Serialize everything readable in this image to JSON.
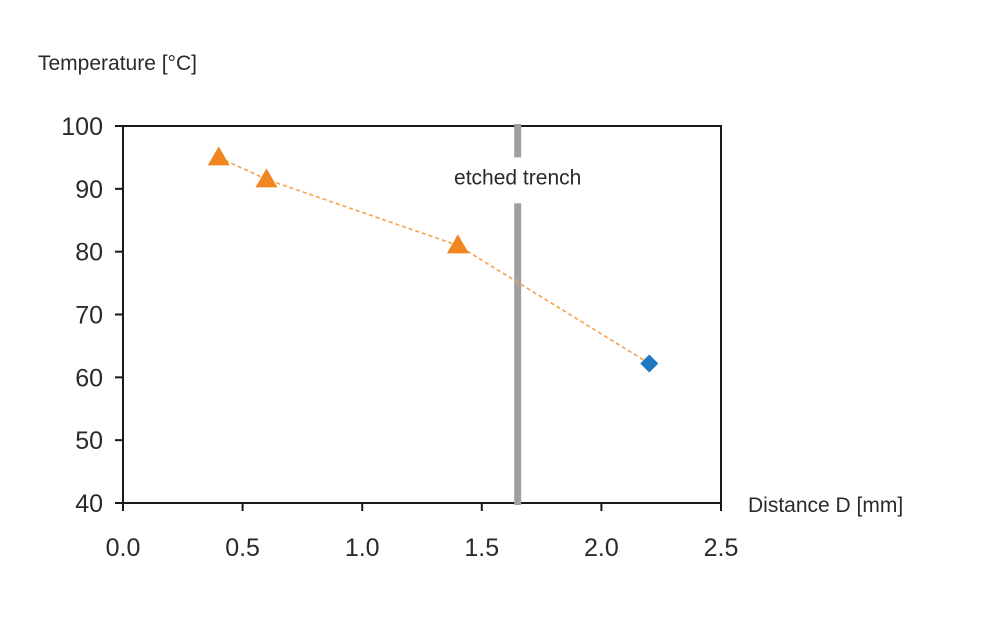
{
  "chart_data": {
    "type": "scatter",
    "title": "",
    "xlabel": "Distance D [mm]",
    "ylabel": "Temperature [°C]",
    "xlim": [
      0.0,
      2.5
    ],
    "ylim": [
      40,
      100
    ],
    "x_ticks": [
      "0.0",
      "0.5",
      "1.0",
      "1.5",
      "2.0",
      "2.5"
    ],
    "y_ticks": [
      "40",
      "50",
      "60",
      "70",
      "80",
      "90",
      "100"
    ],
    "grid": false,
    "legend": "none",
    "series": [
      {
        "marker": "triangle",
        "color": "#f0861f",
        "points": [
          {
            "x": 0.4,
            "y": 95
          },
          {
            "x": 0.6,
            "y": 91.5
          },
          {
            "x": 1.4,
            "y": 81
          }
        ]
      },
      {
        "marker": "diamond",
        "color": "#1f78c1",
        "points": [
          {
            "x": 2.2,
            "y": 62.2
          }
        ]
      }
    ],
    "connector_line": {
      "style": "dashed",
      "color": "#f5a24a"
    },
    "annotations": [
      {
        "type": "vertical-line",
        "x": 1.65,
        "color": "#a0a0a0",
        "label": "etched trench"
      }
    ]
  }
}
